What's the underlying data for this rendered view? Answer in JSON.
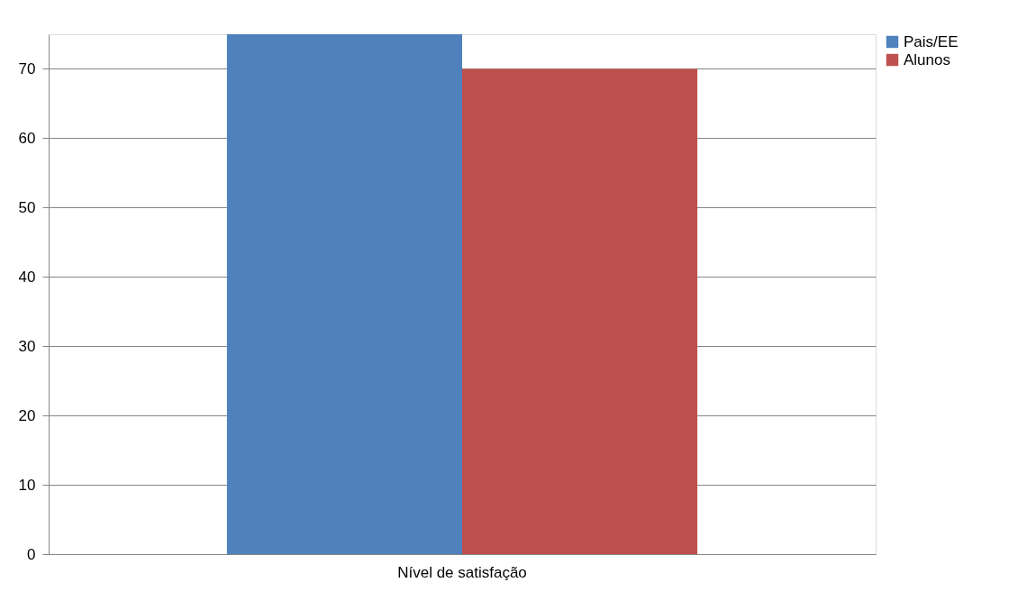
{
  "chart_data": {
    "type": "bar",
    "categories": [
      "Nível de satisfação"
    ],
    "series": [
      {
        "name": "Pais/EE",
        "color": "#4f81bd",
        "values": [
          75
        ]
      },
      {
        "name": "Alunos",
        "color": "#c0504d",
        "values": [
          70
        ]
      }
    ],
    "ylim": [
      0,
      75
    ],
    "yticks": [
      0,
      10,
      20,
      30,
      40,
      50,
      60,
      70
    ],
    "grid": "y",
    "legend": "right"
  }
}
